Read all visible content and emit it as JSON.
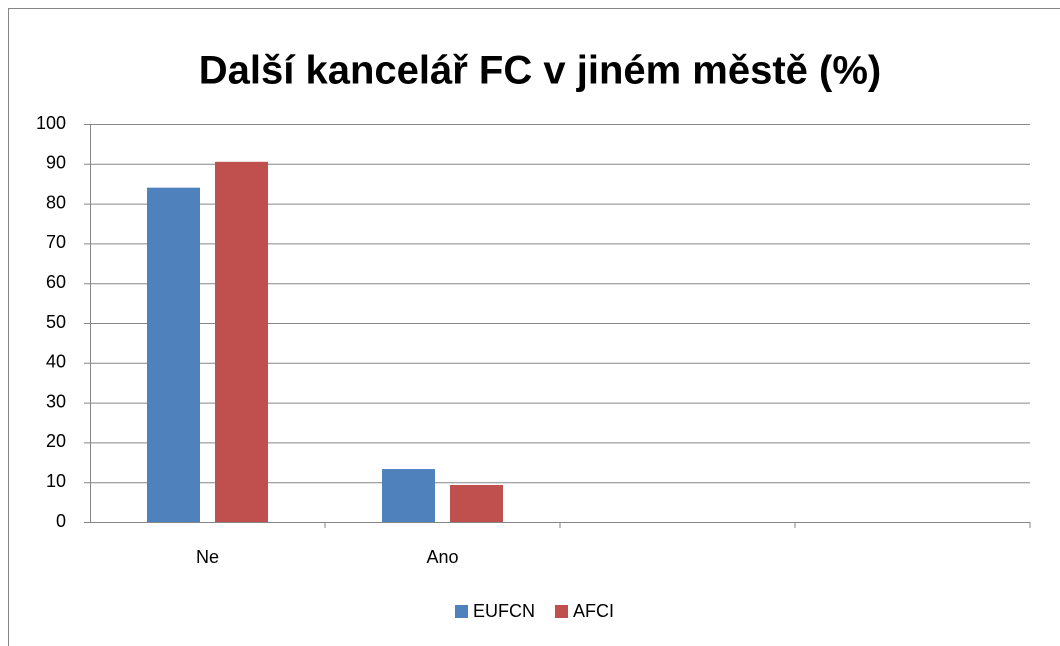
{
  "chart_data": {
    "type": "bar",
    "title": "Další kancelář FC v jiném městě (%)",
    "categories": [
      "Ne",
      "Ano",
      null,
      null
    ],
    "series": [
      {
        "name": "EUFCN",
        "color": "#4f81bd",
        "values": [
          84,
          13.3,
          null,
          null
        ]
      },
      {
        "name": "AFCI",
        "color": "#c0504d",
        "values": [
          90.5,
          9.3,
          null,
          null
        ]
      }
    ],
    "ylim": [
      0,
      100
    ],
    "yticks": [
      0,
      10,
      20,
      30,
      40,
      50,
      60,
      70,
      80,
      90,
      100
    ],
    "grid": true,
    "legend": "bottom"
  }
}
